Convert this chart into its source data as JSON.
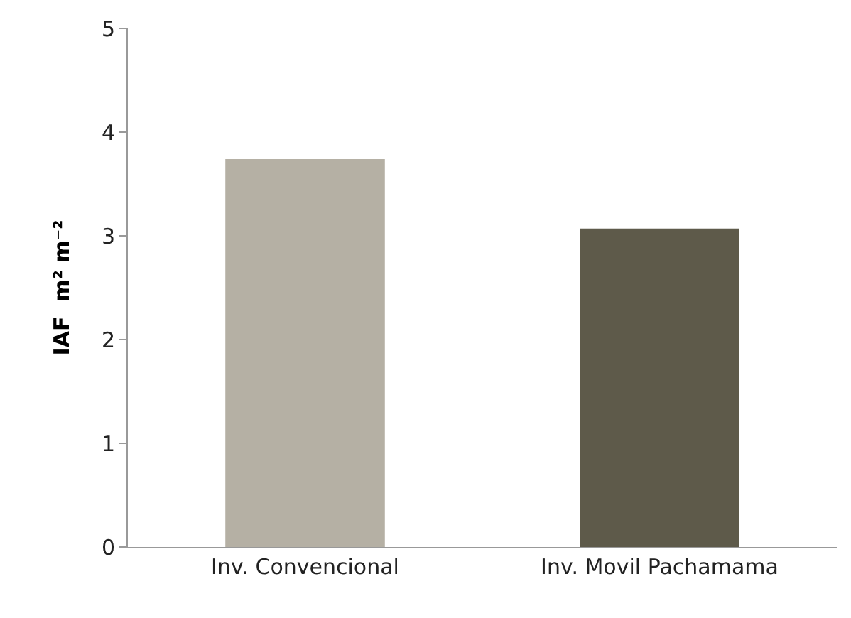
{
  "chart_data": {
    "type": "bar",
    "ylabel": "IAF  m² m⁻²",
    "categories": [
      "Inv. Convencional",
      "Inv. Movil Pachamama"
    ],
    "values": [
      3.74,
      3.07
    ],
    "colors": [
      "#b5b0a4",
      "#5e5a4a"
    ],
    "ylim": [
      0,
      5
    ],
    "yticks": [
      0,
      1,
      2,
      3,
      4,
      5
    ],
    "grid": false
  }
}
